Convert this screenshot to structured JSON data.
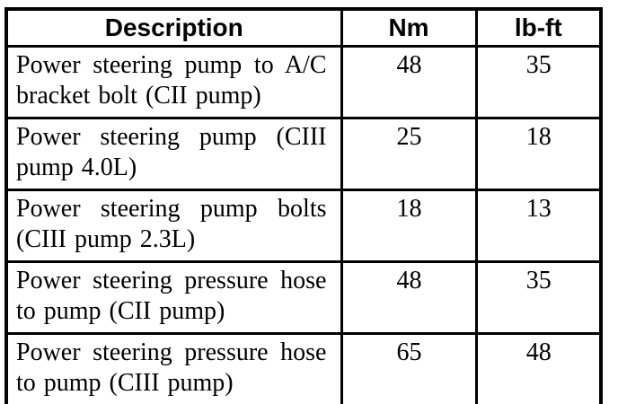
{
  "table": {
    "columns": [
      {
        "label": "Description"
      },
      {
        "label": "Nm"
      },
      {
        "label": "lb-ft"
      }
    ],
    "rows": [
      {
        "description": "Power steering pump to A/C bracket bolt (CII pump)",
        "nm": "48",
        "lbft": "35"
      },
      {
        "description": "Power steering pump (CIII pump 4.0L)",
        "nm": "25",
        "lbft": "18"
      },
      {
        "description": "Power steering pump bolts (CIII pump 2.3L)",
        "nm": "18",
        "lbft": "13"
      },
      {
        "description": "Power steering pressure hose to pump (CII pump)",
        "nm": "48",
        "lbft": "35"
      },
      {
        "description": "Power steering pressure hose to pump (CIII pump)",
        "nm": "65",
        "lbft": "48"
      }
    ],
    "colors": {
      "border": "#000000",
      "text": "#000000",
      "background": "#ffffff"
    }
  }
}
